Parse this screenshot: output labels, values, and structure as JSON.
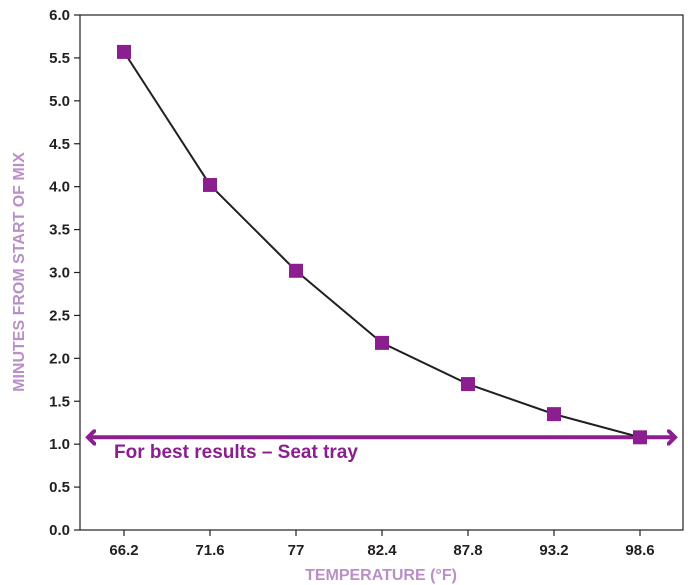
{
  "chart_data": {
    "type": "line",
    "categories": [
      "66.2",
      "71.6",
      "77",
      "82.4",
      "87.8",
      "93.2",
      "98.6"
    ],
    "series": [
      {
        "values": [
          5.57,
          4.02,
          3.02,
          2.18,
          1.7,
          1.35,
          1.08
        ]
      }
    ],
    "xlabel": "TEMPERATURE (°F)",
    "ylabel": "MINUTES FROM START OF MIX",
    "ylim": [
      0,
      6
    ],
    "yticks": [
      "0.0",
      "0.5",
      "1.0",
      "1.5",
      "2.0",
      "2.5",
      "3.0",
      "3.5",
      "4.0",
      "4.5",
      "5.0",
      "5.5",
      "6.0"
    ],
    "grid": false,
    "annotation": {
      "text": "For best results – Seat tray",
      "y": 1.08,
      "style": "double-headed arrow across full width"
    },
    "colors": {
      "marker": "#8b1f8f",
      "line": "#231f20",
      "annotation": "#8b1f8f",
      "axis_title": "#b98fc7"
    }
  }
}
